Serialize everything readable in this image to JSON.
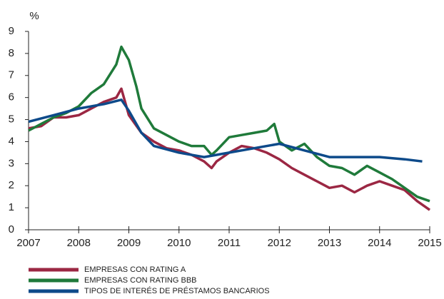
{
  "chart_data": {
    "type": "line",
    "y_label": "%",
    "xlim": [
      2007,
      2015
    ],
    "xticks": [
      2007,
      2008,
      2009,
      2010,
      2011,
      2012,
      2013,
      2014,
      2015
    ],
    "ylim": [
      0,
      9
    ],
    "yticks": [
      0,
      1,
      2,
      3,
      4,
      5,
      6,
      7,
      8,
      9
    ],
    "series": [
      {
        "name": "EMPRESAS CON RATING A",
        "color": "#9b2743",
        "x": [
          2007,
          2007.25,
          2007.5,
          2007.75,
          2008,
          2008.25,
          2008.5,
          2008.75,
          2008.85,
          2009,
          2009.25,
          2009.5,
          2009.75,
          2010,
          2010.25,
          2010.5,
          2010.65,
          2010.75,
          2011,
          2011.25,
          2011.5,
          2011.75,
          2012,
          2012.25,
          2012.5,
          2012.75,
          2013,
          2013.25,
          2013.5,
          2013.75,
          2014,
          2014.25,
          2014.5,
          2014.75,
          2015
        ],
        "values": [
          4.6,
          4.7,
          5.1,
          5.1,
          5.2,
          5.5,
          5.8,
          6.0,
          6.4,
          5.2,
          4.4,
          4.0,
          3.7,
          3.6,
          3.4,
          3.1,
          2.8,
          3.1,
          3.5,
          3.8,
          3.7,
          3.5,
          3.2,
          2.8,
          2.5,
          2.2,
          1.9,
          2.0,
          1.7,
          2.0,
          2.2,
          2.0,
          1.8,
          1.3,
          0.9
        ]
      },
      {
        "name": "EMPRESAS CON RATING BBB",
        "color": "#1f7a3a",
        "x": [
          2007,
          2007.25,
          2007.5,
          2007.75,
          2008,
          2008.25,
          2008.5,
          2008.75,
          2008.85,
          2009,
          2009.15,
          2009.25,
          2009.5,
          2009.75,
          2010,
          2010.25,
          2010.5,
          2010.65,
          2010.75,
          2011,
          2011.25,
          2011.5,
          2011.75,
          2011.9,
          2012,
          2012.25,
          2012.5,
          2012.75,
          2013,
          2013.25,
          2013.5,
          2013.75,
          2014,
          2014.25,
          2014.5,
          2014.75,
          2015
        ],
        "values": [
          4.5,
          4.8,
          5.1,
          5.3,
          5.6,
          6.2,
          6.6,
          7.5,
          8.3,
          7.7,
          6.5,
          5.5,
          4.6,
          4.3,
          4.0,
          3.8,
          3.8,
          3.4,
          3.6,
          4.2,
          4.3,
          4.4,
          4.5,
          4.8,
          4.0,
          3.6,
          3.9,
          3.3,
          2.9,
          2.8,
          2.5,
          2.9,
          2.6,
          2.3,
          1.9,
          1.5,
          1.3
        ]
      },
      {
        "name": "TIPOS DE INTERÉS DE PRÉSTAMOS BANCARIOS",
        "color": "#0d4a8a",
        "x": [
          2007,
          2007.5,
          2008,
          2008.5,
          2008.85,
          2009,
          2009.25,
          2009.5,
          2010,
          2010.5,
          2011,
          2011.5,
          2012,
          2012.5,
          2013,
          2013.5,
          2014,
          2014.5,
          2014.85
        ],
        "values": [
          4.9,
          5.2,
          5.5,
          5.7,
          5.9,
          5.4,
          4.4,
          3.8,
          3.5,
          3.3,
          3.5,
          3.7,
          3.9,
          3.6,
          3.3,
          3.3,
          3.3,
          3.2,
          3.1
        ]
      }
    ]
  }
}
